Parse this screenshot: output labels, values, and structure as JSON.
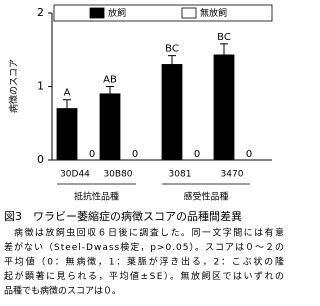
{
  "chart_data": {
    "type": "bar",
    "ylabel": "病徴のスコア",
    "categories": [
      "30D44",
      "30B80",
      "3081",
      "3470"
    ],
    "groups": [
      {
        "label": "抵抗性品種",
        "categories": [
          0,
          1
        ]
      },
      {
        "label": "感受性品種",
        "categories": [
          2,
          3
        ]
      }
    ],
    "series": [
      {
        "name": "放飼",
        "color": "#000000",
        "values": [
          0.7,
          0.9,
          1.3,
          1.43
        ],
        "errors": [
          0.12,
          0.1,
          0.12,
          0.15
        ],
        "letters": [
          "A",
          "AB",
          "BC",
          "BC"
        ]
      },
      {
        "name": "無放飼",
        "color": "#ffffff",
        "values": [
          0,
          0,
          0,
          0
        ]
      }
    ],
    "ylim": [
      0,
      2
    ],
    "yticks": [
      0,
      1,
      2
    ],
    "legend": "top"
  },
  "caption": {
    "title": "図3　ワラビー萎縮症の病徴スコアの品種間差異",
    "notes": [
      "病徴は放飼虫回収６日後に調査した。同一文字間には有意",
      "差がない（Steel-Dwass検定，p>0.05）。スコアは０～２の",
      "平均値（0：無病徴，1：葉脈が浮き出る，2：こぶ状の隆",
      "起が顕著に見られる，平均値±SE）。無放飼区ではいずれの",
      "品種でも病徴のスコアは０。"
    ]
  }
}
